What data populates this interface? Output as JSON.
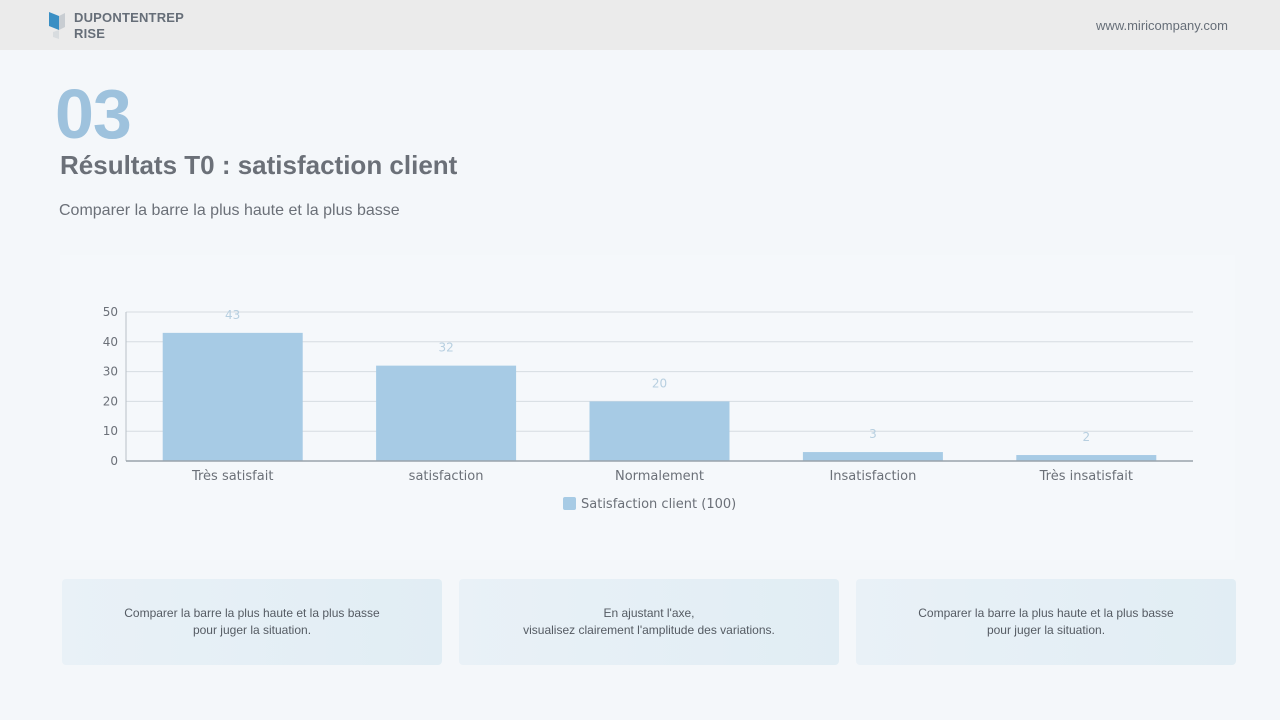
{
  "header": {
    "brand_line1": "DUPONTENTREP",
    "brand_line2": "RISE",
    "url": "www.miricompany.com",
    "logo_icon": "cube-logo-icon"
  },
  "section": {
    "number": "03",
    "title": "Résultats T0 : satisfaction client",
    "subtitle": "Comparer la barre la plus haute et la plus basse"
  },
  "chart_data": {
    "type": "bar",
    "categories": [
      "Très satisfait",
      "satisfaction",
      "Normalement",
      "Insatisfaction",
      "Très insatisfait"
    ],
    "series": [
      {
        "name": "Satisfaction client (100)",
        "values": [
          43,
          32,
          20,
          3,
          2
        ],
        "color": "#a7cbe5"
      }
    ],
    "ylim": [
      0,
      50
    ],
    "yticks": [
      0,
      10,
      20,
      30,
      40,
      50
    ],
    "grid": true,
    "legend": "bottom",
    "data_labels": true
  },
  "cards": [
    {
      "line1": "Comparer la barre la plus haute et la plus basse",
      "line2": "pour juger la situation."
    },
    {
      "line1": "En ajustant l'axe,",
      "line2": "visualisez clairement l'amplitude des variations."
    },
    {
      "line1": "Comparer la barre la plus haute et la plus basse",
      "line2": "pour juger la situation."
    }
  ],
  "colors": {
    "accent": "#9ec2dd",
    "bar": "#a7cbe5",
    "text": "#6b7078"
  }
}
